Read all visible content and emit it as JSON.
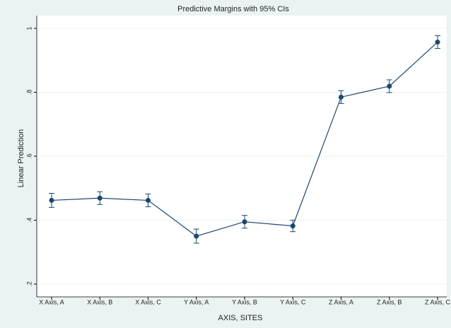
{
  "chart_data": {
    "type": "line",
    "title": "Predictive Margins with 95% CIs",
    "x_label": "AXIS, SITES",
    "y_label": "Linear Prediction",
    "categories": [
      "X Axis, A",
      "X Axis, B",
      "X Axis, C",
      "Y Axis, A",
      "Y Axis, B",
      "Y Axis, C",
      "Z Axis, A",
      "Z Axis, B",
      "Z Axis, C"
    ],
    "values": [
      0.462,
      0.469,
      0.462,
      0.35,
      0.395,
      0.382,
      0.785,
      0.819,
      0.957
    ],
    "errors": [
      0.022,
      0.02,
      0.02,
      0.022,
      0.02,
      0.018,
      0.02,
      0.02,
      0.02
    ],
    "color": "#1a476f",
    "ylim": [
      0.16,
      1.04
    ],
    "yticks": [
      {
        "value": 0.2,
        "label": ".2"
      },
      {
        "value": 0.4,
        "label": ".4"
      },
      {
        "value": 0.6,
        "label": ".6"
      },
      {
        "value": 0.8,
        "label": ".8"
      },
      1
    ],
    "grid": true
  }
}
